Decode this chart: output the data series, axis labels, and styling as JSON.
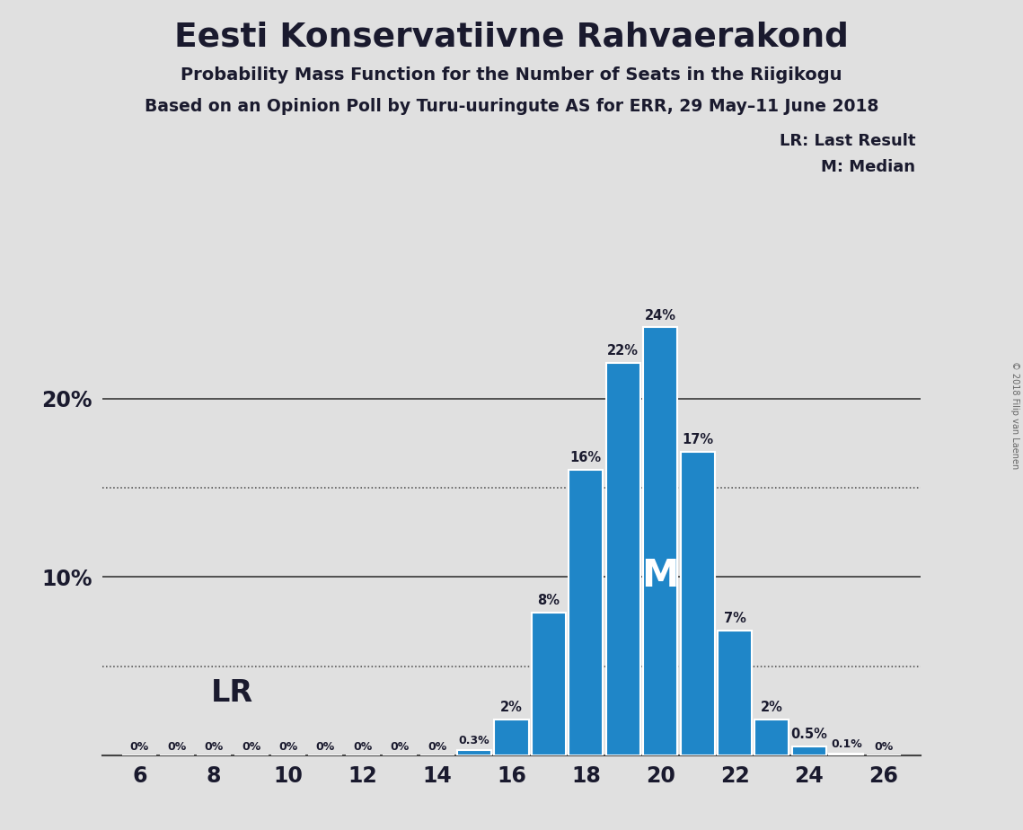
{
  "title": "Eesti Konservatiivne Rahvaerakond",
  "subtitle1": "Probability Mass Function for the Number of Seats in the Riigikogu",
  "subtitle2": "Based on an Opinion Poll by Turu-uuringute AS for ERR, 29 May–11 June 2018",
  "copyright": "© 2018 Filip van Laenen",
  "seats": [
    6,
    7,
    8,
    9,
    10,
    11,
    12,
    13,
    14,
    15,
    16,
    17,
    18,
    19,
    20,
    21,
    22,
    23,
    24,
    25,
    26
  ],
  "probabilities": [
    0.0,
    0.0,
    0.0,
    0.0,
    0.0,
    0.0,
    0.0,
    0.0,
    0.0,
    0.3,
    2.0,
    8.0,
    16.0,
    22.0,
    24.0,
    17.0,
    7.0,
    2.0,
    0.5,
    0.1,
    0.0
  ],
  "labels": [
    "0%",
    "0%",
    "0%",
    "0%",
    "0%",
    "0%",
    "0%",
    "0%",
    "0%",
    "0.3%",
    "2%",
    "8%",
    "16%",
    "22%",
    "24%",
    "17%",
    "7%",
    "2%",
    "0.5%",
    "0.1%",
    "0%"
  ],
  "bar_color": "#1f86c8",
  "bg_color": "#e0e0e0",
  "median_seat": 20,
  "lr_seat": 14,
  "xlim": [
    5.0,
    27.0
  ],
  "ylim": [
    0,
    27
  ],
  "solid_lines": [
    10,
    20
  ],
  "dotted_lines": [
    5,
    15
  ],
  "text_color": "#1a1a2e",
  "line_color": "#444444"
}
